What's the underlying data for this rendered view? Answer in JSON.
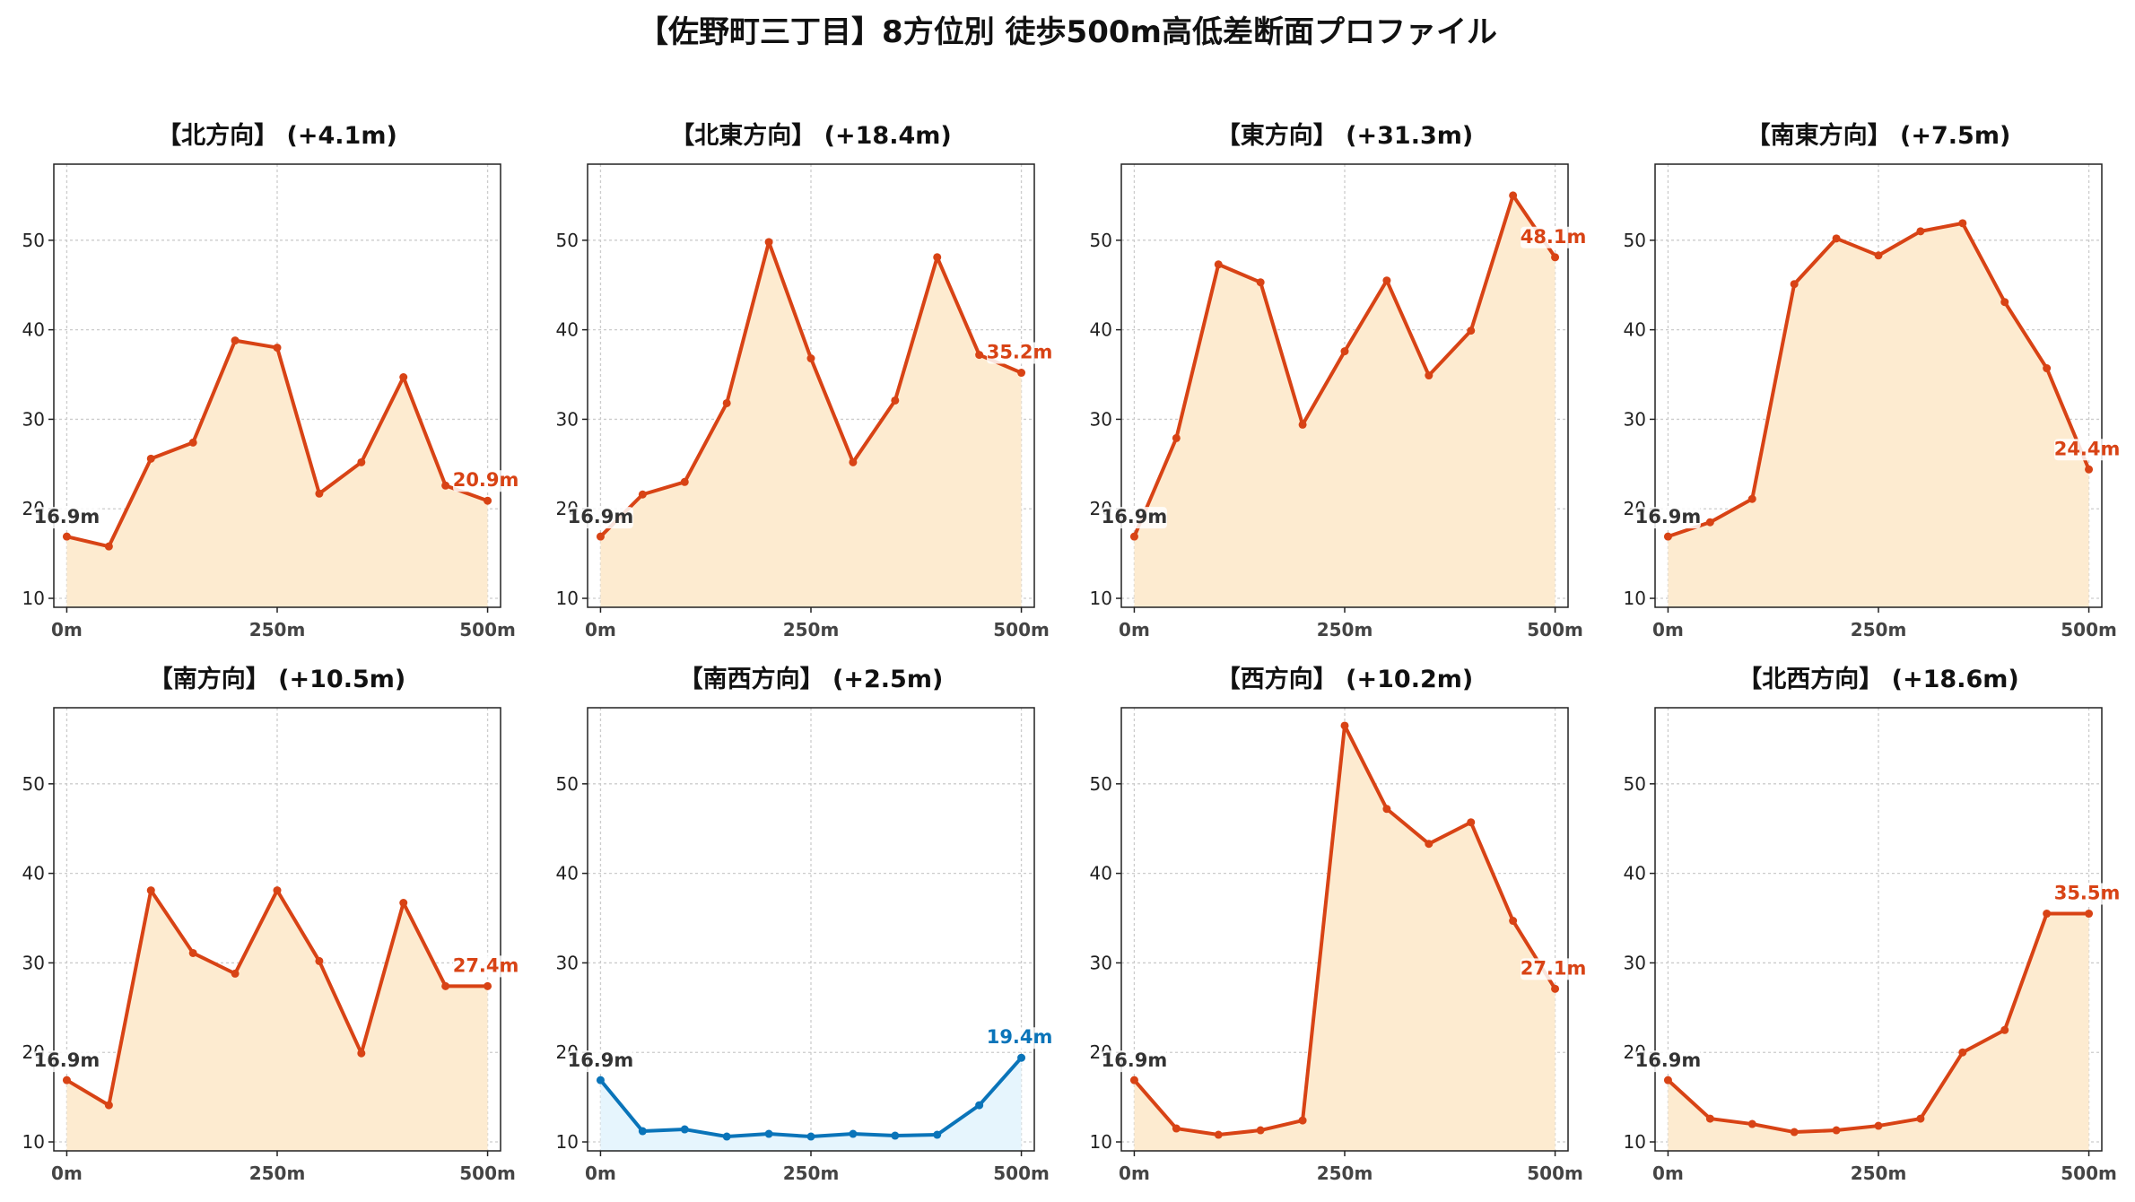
{
  "title": "【佐野町三丁目】8方位別 徒歩500m高低差断面プロファイル",
  "colors": {
    "up_line": "#D84315",
    "up_fill": "#FDEBD0",
    "down_line": "#0A74B9",
    "down_fill": "#E6F5FD",
    "start_label": "#333333",
    "grid": "#CCCCCC"
  },
  "chart_data": [
    {
      "type": "area",
      "title": "【北方向】 (+4.1m)",
      "x": [
        0,
        50,
        100,
        150,
        200,
        250,
        300,
        350,
        400,
        450,
        500
      ],
      "x_ticks": [
        "0m",
        "250m",
        "500m"
      ],
      "y_ticks": [
        "10",
        "20",
        "30",
        "40",
        "50"
      ],
      "ylim": [
        9,
        58.5
      ],
      "values": [
        16.9,
        15.8,
        25.6,
        27.4,
        38.8,
        38.0,
        21.7,
        25.2,
        34.7,
        22.6,
        20.9
      ],
      "start_label": "16.9m",
      "end_label": "20.9m",
      "trend": "up"
    },
    {
      "type": "area",
      "title": "【北東方向】 (+18.4m)",
      "x": [
        0,
        50,
        100,
        150,
        200,
        250,
        300,
        350,
        400,
        450,
        500
      ],
      "x_ticks": [
        "0m",
        "250m",
        "500m"
      ],
      "y_ticks": [
        "10",
        "20",
        "30",
        "40",
        "50"
      ],
      "ylim": [
        9,
        58.5
      ],
      "values": [
        16.9,
        21.6,
        23.0,
        31.8,
        49.8,
        36.8,
        25.2,
        32.1,
        48.1,
        37.2,
        35.2
      ],
      "start_label": "16.9m",
      "end_label": "35.2m",
      "trend": "up"
    },
    {
      "type": "area",
      "title": "【東方向】 (+31.3m)",
      "x": [
        0,
        50,
        100,
        150,
        200,
        250,
        300,
        350,
        400,
        450,
        500
      ],
      "x_ticks": [
        "0m",
        "250m",
        "500m"
      ],
      "y_ticks": [
        "10",
        "20",
        "30",
        "40",
        "50"
      ],
      "ylim": [
        9,
        58.5
      ],
      "values": [
        16.9,
        27.9,
        47.3,
        45.3,
        29.4,
        37.6,
        45.5,
        34.9,
        39.9,
        55.0,
        48.1
      ],
      "start_label": "16.9m",
      "end_label": "48.1m",
      "trend": "up"
    },
    {
      "type": "area",
      "title": "【南東方向】 (+7.5m)",
      "x": [
        0,
        50,
        100,
        150,
        200,
        250,
        300,
        350,
        400,
        450,
        500
      ],
      "x_ticks": [
        "0m",
        "250m",
        "500m"
      ],
      "y_ticks": [
        "10",
        "20",
        "30",
        "40",
        "50"
      ],
      "ylim": [
        9,
        58.5
      ],
      "values": [
        16.9,
        18.5,
        21.1,
        45.1,
        50.2,
        48.3,
        51.0,
        51.9,
        43.1,
        35.7,
        24.4
      ],
      "start_label": "16.9m",
      "end_label": "24.4m",
      "trend": "up"
    },
    {
      "type": "area",
      "title": "【南方向】 (+10.5m)",
      "x": [
        0,
        50,
        100,
        150,
        200,
        250,
        300,
        350,
        400,
        450,
        500
      ],
      "x_ticks": [
        "0m",
        "250m",
        "500m"
      ],
      "y_ticks": [
        "10",
        "20",
        "30",
        "40",
        "50"
      ],
      "ylim": [
        9,
        58.5
      ],
      "values": [
        16.9,
        14.1,
        38.1,
        31.1,
        28.8,
        38.1,
        30.2,
        19.9,
        36.7,
        27.4,
        27.4
      ],
      "start_label": "16.9m",
      "end_label": "27.4m",
      "trend": "up"
    },
    {
      "type": "area",
      "title": "【南西方向】 (+2.5m)",
      "x": [
        0,
        50,
        100,
        150,
        200,
        250,
        300,
        350,
        400,
        450,
        500
      ],
      "x_ticks": [
        "0m",
        "250m",
        "500m"
      ],
      "y_ticks": [
        "10",
        "20",
        "30",
        "40",
        "50"
      ],
      "ylim": [
        9,
        58.5
      ],
      "values": [
        16.9,
        11.2,
        11.4,
        10.6,
        10.9,
        10.6,
        10.9,
        10.7,
        10.8,
        14.1,
        19.4
      ],
      "start_label": "16.9m",
      "end_label": "19.4m",
      "trend": "down"
    },
    {
      "type": "area",
      "title": "【西方向】 (+10.2m)",
      "x": [
        0,
        50,
        100,
        150,
        200,
        250,
        300,
        350,
        400,
        450,
        500
      ],
      "x_ticks": [
        "0m",
        "250m",
        "500m"
      ],
      "y_ticks": [
        "10",
        "20",
        "30",
        "40",
        "50"
      ],
      "ylim": [
        9,
        58.5
      ],
      "values": [
        16.9,
        11.5,
        10.8,
        11.3,
        12.4,
        56.5,
        47.2,
        43.3,
        45.7,
        34.7,
        27.1
      ],
      "start_label": "16.9m",
      "end_label": "27.1m",
      "trend": "up"
    },
    {
      "type": "area",
      "title": "【北西方向】 (+18.6m)",
      "x": [
        0,
        50,
        100,
        150,
        200,
        250,
        300,
        350,
        400,
        450,
        500
      ],
      "x_ticks": [
        "0m",
        "250m",
        "500m"
      ],
      "y_ticks": [
        "10",
        "20",
        "30",
        "40",
        "50"
      ],
      "ylim": [
        9,
        58.5
      ],
      "values": [
        16.9,
        12.6,
        12.0,
        11.1,
        11.3,
        11.8,
        12.6,
        20.0,
        22.5,
        35.5,
        35.5
      ],
      "start_label": "16.9m",
      "end_label": "35.5m",
      "trend": "up"
    }
  ]
}
